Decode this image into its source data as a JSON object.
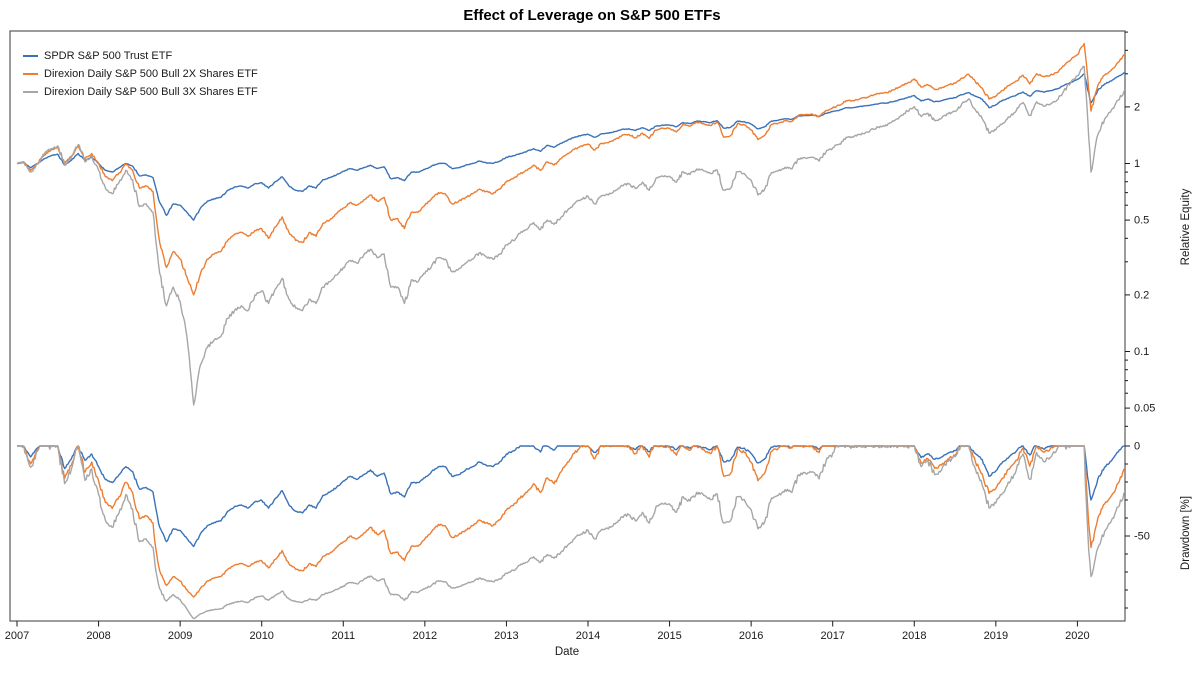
{
  "title": "Effect of Leverage on S&P 500 ETFs",
  "colors": {
    "blue": "#3A72B8",
    "orange": "#ED7D31",
    "gray": "#A6A6A6",
    "frame": "#595959",
    "tick": "#1a1a1a",
    "text": "#1a1a1a"
  },
  "legend": {
    "items": [
      {
        "label": "SPDR S&P 500 Trust ETF",
        "color": "#3A72B8"
      },
      {
        "label": "Direxion Daily S&P 500 Bull 2X Shares ETF",
        "color": "#ED7D31"
      },
      {
        "label": "Direxion Daily S&P 500 Bull 3X Shares ETF",
        "color": "#A6A6A6"
      }
    ]
  },
  "axes": {
    "x": {
      "label": "Date",
      "ticks": [
        2007,
        2008,
        2009,
        2010,
        2011,
        2012,
        2013,
        2014,
        2015,
        2016,
        2017,
        2018,
        2019,
        2020
      ],
      "range": [
        2007.0,
        2020.583
      ]
    },
    "y_top": {
      "label": "Relative Equity",
      "scale": "log",
      "major_ticks": [
        2,
        1,
        0.5,
        0.2,
        0.1,
        0.05
      ],
      "minor_ticks": [
        5,
        4,
        3,
        0.9,
        0.8,
        0.7,
        0.6,
        0.4,
        0.3,
        0.09,
        0.08,
        0.07,
        0.06,
        0.04
      ],
      "range": [
        0.038,
        5.1
      ]
    },
    "y_bottom": {
      "label": "Drawdown [%]",
      "scale": "linear",
      "major_ticks": [
        0,
        -50
      ],
      "minor_ticks": [
        -10,
        -20,
        -30,
        -40,
        -60,
        -70,
        -80,
        -90
      ],
      "range": [
        -97,
        0
      ]
    }
  },
  "chart_data": [
    {
      "type": "line",
      "panel": "relative-equity",
      "title": "Effect of Leverage on S&P 500 ETFs",
      "yscale": "log",
      "x_start": 2007.0,
      "x_step_months": 1,
      "x_end": 2020.583,
      "series": [
        {
          "name": "SPDR S&P 500 Trust ETF",
          "color": "#3A72B8",
          "values": [
            1.0,
            1.01,
            0.95,
            1.0,
            1.06,
            1.1,
            1.12,
            0.98,
            1.04,
            1.13,
            1.04,
            1.08,
            1.0,
            0.92,
            0.9,
            0.95,
            1.0,
            0.97,
            0.86,
            0.87,
            0.84,
            0.62,
            0.53,
            0.61,
            0.6,
            0.55,
            0.5,
            0.58,
            0.63,
            0.65,
            0.66,
            0.72,
            0.75,
            0.76,
            0.74,
            0.78,
            0.79,
            0.74,
            0.8,
            0.85,
            0.76,
            0.72,
            0.71,
            0.76,
            0.74,
            0.82,
            0.84,
            0.87,
            0.91,
            0.94,
            0.92,
            0.95,
            0.98,
            0.94,
            0.96,
            0.83,
            0.84,
            0.81,
            0.9,
            0.9,
            0.93,
            0.97,
            1.0,
            1.0,
            0.94,
            0.95,
            0.98,
            1.0,
            1.03,
            1.01,
            1.0,
            1.03,
            1.08,
            1.1,
            1.13,
            1.16,
            1.2,
            1.16,
            1.25,
            1.22,
            1.28,
            1.33,
            1.38,
            1.41,
            1.43,
            1.38,
            1.44,
            1.45,
            1.48,
            1.52,
            1.53,
            1.5,
            1.55,
            1.5,
            1.58,
            1.6,
            1.6,
            1.57,
            1.65,
            1.63,
            1.68,
            1.67,
            1.65,
            1.69,
            1.54,
            1.56,
            1.68,
            1.67,
            1.62,
            1.53,
            1.57,
            1.68,
            1.7,
            1.73,
            1.72,
            1.79,
            1.8,
            1.81,
            1.78,
            1.85,
            1.89,
            1.92,
            1.98,
            1.98,
            2.01,
            2.03,
            2.06,
            2.09,
            2.1,
            2.14,
            2.19,
            2.24,
            2.3,
            2.15,
            2.2,
            2.13,
            2.16,
            2.21,
            2.24,
            2.32,
            2.38,
            2.28,
            2.2,
            1.98,
            2.05,
            2.17,
            2.24,
            2.31,
            2.4,
            2.28,
            2.44,
            2.4,
            2.44,
            2.49,
            2.6,
            2.7,
            2.8,
            3.0,
            2.1,
            2.45,
            2.65,
            2.75,
            2.9,
            3.05
          ]
        },
        {
          "name": "Direxion Daily S&P 500 Bull 2X Shares ETF",
          "color": "#ED7D31",
          "values": [
            1.0,
            1.02,
            0.92,
            1.0,
            1.11,
            1.18,
            1.22,
            1.0,
            1.09,
            1.24,
            1.06,
            1.13,
            1.0,
            0.85,
            0.81,
            0.89,
            0.99,
            0.92,
            0.74,
            0.76,
            0.71,
            0.38,
            0.28,
            0.34,
            0.31,
            0.25,
            0.2,
            0.26,
            0.31,
            0.33,
            0.34,
            0.39,
            0.42,
            0.43,
            0.41,
            0.44,
            0.45,
            0.4,
            0.46,
            0.52,
            0.43,
            0.39,
            0.38,
            0.43,
            0.41,
            0.48,
            0.5,
            0.54,
            0.58,
            0.62,
            0.6,
            0.64,
            0.68,
            0.63,
            0.66,
            0.5,
            0.51,
            0.45,
            0.55,
            0.55,
            0.6,
            0.65,
            0.7,
            0.69,
            0.61,
            0.63,
            0.66,
            0.69,
            0.73,
            0.71,
            0.69,
            0.73,
            0.8,
            0.83,
            0.88,
            0.92,
            0.98,
            0.92,
            1.02,
            0.98,
            1.06,
            1.13,
            1.19,
            1.24,
            1.27,
            1.18,
            1.28,
            1.29,
            1.34,
            1.41,
            1.43,
            1.37,
            1.45,
            1.36,
            1.51,
            1.54,
            1.54,
            1.47,
            1.62,
            1.58,
            1.66,
            1.63,
            1.59,
            1.66,
            1.38,
            1.41,
            1.63,
            1.6,
            1.51,
            1.34,
            1.41,
            1.61,
            1.64,
            1.69,
            1.67,
            1.81,
            1.82,
            1.83,
            1.77,
            1.91,
            1.98,
            2.04,
            2.16,
            2.16,
            2.21,
            2.25,
            2.31,
            2.37,
            2.38,
            2.47,
            2.57,
            2.68,
            2.82,
            2.55,
            2.62,
            2.47,
            2.52,
            2.62,
            2.67,
            2.85,
            2.98,
            2.72,
            2.52,
            2.2,
            2.28,
            2.45,
            2.6,
            2.75,
            2.95,
            2.65,
            3.0,
            2.9,
            2.95,
            3.05,
            3.3,
            3.55,
            3.8,
            4.35,
            1.9,
            2.6,
            2.95,
            3.15,
            3.45,
            3.8
          ]
        },
        {
          "name": "Direxion Daily S&P 500 Bull 3X Shares ETF",
          "color": "#A6A6A6",
          "values": [
            1.0,
            1.02,
            0.9,
            0.99,
            1.12,
            1.2,
            1.24,
            0.98,
            1.08,
            1.26,
            1.02,
            1.1,
            0.92,
            0.74,
            0.69,
            0.79,
            0.92,
            0.82,
            0.59,
            0.61,
            0.55,
            0.26,
            0.175,
            0.22,
            0.185,
            0.12,
            0.052,
            0.085,
            0.105,
            0.115,
            0.12,
            0.15,
            0.165,
            0.175,
            0.165,
            0.2,
            0.21,
            0.18,
            0.215,
            0.245,
            0.19,
            0.17,
            0.165,
            0.19,
            0.18,
            0.22,
            0.235,
            0.255,
            0.28,
            0.305,
            0.295,
            0.325,
            0.35,
            0.315,
            0.33,
            0.22,
            0.22,
            0.18,
            0.24,
            0.235,
            0.26,
            0.285,
            0.315,
            0.31,
            0.265,
            0.275,
            0.295,
            0.31,
            0.335,
            0.32,
            0.31,
            0.33,
            0.37,
            0.39,
            0.425,
            0.445,
            0.485,
            0.445,
            0.5,
            0.475,
            0.515,
            0.565,
            0.61,
            0.645,
            0.67,
            0.61,
            0.675,
            0.68,
            0.715,
            0.765,
            0.78,
            0.735,
            0.795,
            0.72,
            0.835,
            0.855,
            0.855,
            0.795,
            0.905,
            0.875,
            0.935,
            0.915,
            0.885,
            0.925,
            0.72,
            0.74,
            0.905,
            0.885,
            0.815,
            0.68,
            0.73,
            0.895,
            0.915,
            0.955,
            0.935,
            1.06,
            1.07,
            1.08,
            1.03,
            1.15,
            1.21,
            1.27,
            1.38,
            1.38,
            1.43,
            1.47,
            1.52,
            1.58,
            1.59,
            1.68,
            1.79,
            1.9,
            2.01,
            1.78,
            1.85,
            1.69,
            1.74,
            1.84,
            1.89,
            2.08,
            2.21,
            1.93,
            1.73,
            1.45,
            1.51,
            1.63,
            1.76,
            1.91,
            2.11,
            1.8,
            2.13,
            2.02,
            2.07,
            2.17,
            2.43,
            2.68,
            2.93,
            3.28,
            0.9,
            1.42,
            1.72,
            1.92,
            2.17,
            2.44
          ]
        }
      ]
    },
    {
      "type": "line",
      "panel": "drawdown",
      "unit": "%",
      "derived_from": "relative-equity",
      "formula": "100 * (value / running_max(value) - 1)"
    }
  ]
}
